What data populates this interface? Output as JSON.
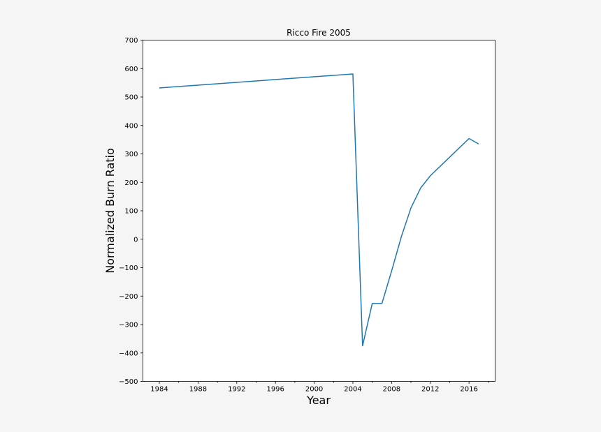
{
  "chart_data": {
    "type": "line",
    "title": "Ricco Fire 2005",
    "xlabel": "Year",
    "ylabel": "Normalized Burn Ratio",
    "xlim": [
      1982.3,
      1018.7
    ],
    "ylim": [
      -500,
      700
    ],
    "x_ticks": [
      "1984",
      "1988",
      "1992",
      "1996",
      "2000",
      "2004",
      "2008",
      "2012",
      "2016"
    ],
    "y_ticks": [
      "700",
      "600",
      "500",
      "400",
      "300",
      "200",
      "100",
      "0",
      "−100",
      "−200",
      "−300",
      "−400",
      "−500"
    ],
    "grid": false,
    "series": [
      {
        "color": "#1f77b4",
        "x": [
          1984,
          2004,
          2005,
          2006,
          2007,
          2008,
          2009,
          2010,
          2011,
          2012,
          2016,
          2017
        ],
        "y": [
          532,
          581,
          -375,
          -226,
          -226,
          -112,
          8,
          110,
          180,
          223,
          354,
          335
        ]
      }
    ]
  }
}
